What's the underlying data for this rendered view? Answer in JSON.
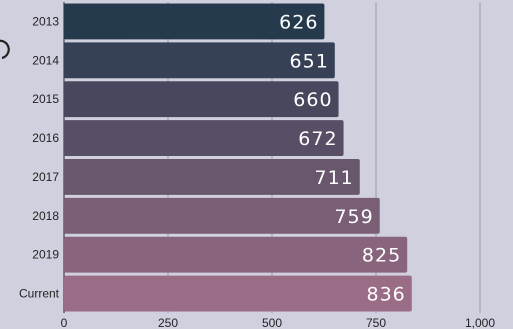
{
  "chart_data": {
    "type": "bar",
    "orientation": "horizontal",
    "categories": [
      "2013",
      "2014",
      "2015",
      "2016",
      "2017",
      "2018",
      "2019",
      "Current"
    ],
    "values": [
      626,
      651,
      660,
      672,
      711,
      759,
      825,
      836
    ],
    "data_labels": [
      "626",
      "651",
      "660",
      "672",
      "711",
      "759",
      "825",
      "836"
    ],
    "x_ticks": [
      {
        "value": 0,
        "label": "0"
      },
      {
        "value": 250,
        "label": "250"
      },
      {
        "value": 500,
        "label": "500"
      },
      {
        "value": 750,
        "label": "750"
      },
      {
        "value": 1000,
        "label": "1,000"
      }
    ],
    "xlim": [
      0,
      1000
    ],
    "title": "",
    "xlabel": "",
    "ylabel": "",
    "grid": "vertical",
    "legend": "none",
    "colors": {
      "background": "#d1d0df",
      "bar_start": "#263a4e",
      "bar_end": "#9a6c85",
      "gridline": "#9a9aa8",
      "text": "#222222",
      "data_label": "#ffffff"
    }
  }
}
